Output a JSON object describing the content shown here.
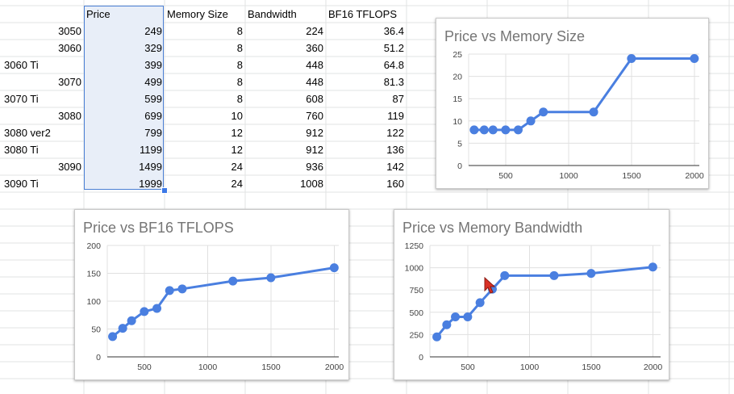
{
  "sheet": {
    "headers": [
      "Price",
      "Memory Size",
      "Bandwidth",
      "BF16 TFLOPS"
    ],
    "rows": [
      {
        "label": "3050",
        "label_align": "right",
        "price": "249",
        "memory": "8",
        "bandwidth": "224",
        "bf16": "36.4"
      },
      {
        "label": "3060",
        "label_align": "right",
        "price": "329",
        "memory": "8",
        "bandwidth": "360",
        "bf16": "51.2"
      },
      {
        "label": "3060 Ti",
        "label_align": "left",
        "price": "399",
        "memory": "8",
        "bandwidth": "448",
        "bf16": "64.8"
      },
      {
        "label": "3070",
        "label_align": "right",
        "price": "499",
        "memory": "8",
        "bandwidth": "448",
        "bf16": "81.3"
      },
      {
        "label": "3070 Ti",
        "label_align": "left",
        "price": "599",
        "memory": "8",
        "bandwidth": "608",
        "bf16": "87"
      },
      {
        "label": "3080",
        "label_align": "right",
        "price": "699",
        "memory": "10",
        "bandwidth": "760",
        "bf16": "119"
      },
      {
        "label": "3080 ver2",
        "label_align": "left",
        "price": "799",
        "memory": "12",
        "bandwidth": "912",
        "bf16": "122"
      },
      {
        "label": "3080 Ti",
        "label_align": "left",
        "price": "1199",
        "memory": "12",
        "bandwidth": "912",
        "bf16": "136"
      },
      {
        "label": "3090",
        "label_align": "right",
        "price": "1499",
        "memory": "24",
        "bandwidth": "936",
        "bf16": "142"
      },
      {
        "label": "3090 Ti",
        "label_align": "left",
        "price": "1999",
        "memory": "24",
        "bandwidth": "1008",
        "bf16": "160"
      }
    ],
    "selected_column": "Price"
  },
  "colors": {
    "series": "#4a7fe0",
    "grid_line": "#e2e3e3",
    "selection": "#e8eef8",
    "selection_border": "#4a7fd4",
    "chart_title": "#757575",
    "cursor": "#d93025"
  },
  "cursor_icon": "pointer-arrow-icon",
  "chart_data": [
    {
      "id": "memory",
      "type": "line",
      "title": "Price vs Memory Size",
      "xlabel": "",
      "ylabel": "",
      "x": [
        249,
        329,
        399,
        499,
        599,
        699,
        799,
        1199,
        1499,
        1999
      ],
      "y": [
        8,
        8,
        8,
        8,
        8,
        10,
        12,
        12,
        24,
        24
      ],
      "xticks": [
        500,
        1000,
        1500,
        2000
      ],
      "yticks": [
        0,
        5,
        10,
        15,
        20,
        25
      ],
      "xlim": [
        200,
        2000
      ],
      "ylim": [
        0,
        25
      ],
      "grid": true,
      "legend": "none"
    },
    {
      "id": "tflops",
      "type": "line",
      "title": "Price vs BF16 TFLOPS",
      "xlabel": "",
      "ylabel": "",
      "x": [
        249,
        329,
        399,
        499,
        599,
        699,
        799,
        1199,
        1499,
        1999
      ],
      "y": [
        36.4,
        51.2,
        64.8,
        81.3,
        87,
        119,
        122,
        136,
        142,
        160
      ],
      "xticks": [
        500,
        1000,
        1500,
        2000
      ],
      "yticks": [
        0,
        50,
        100,
        150,
        200
      ],
      "xlim": [
        200,
        2000
      ],
      "ylim": [
        0,
        200
      ],
      "grid": true,
      "legend": "none"
    },
    {
      "id": "bandwidth",
      "type": "line",
      "title": "Price vs Memory Bandwidth",
      "xlabel": "",
      "ylabel": "",
      "x": [
        249,
        329,
        399,
        499,
        599,
        699,
        799,
        1199,
        1499,
        1999
      ],
      "y": [
        224,
        360,
        448,
        448,
        608,
        760,
        912,
        912,
        936,
        1008
      ],
      "xticks": [
        500,
        1000,
        1500,
        2000
      ],
      "yticks": [
        0,
        250,
        500,
        750,
        1000,
        1250
      ],
      "xlim": [
        200,
        2000
      ],
      "ylim": [
        0,
        1250
      ],
      "grid": true,
      "legend": "none"
    }
  ]
}
